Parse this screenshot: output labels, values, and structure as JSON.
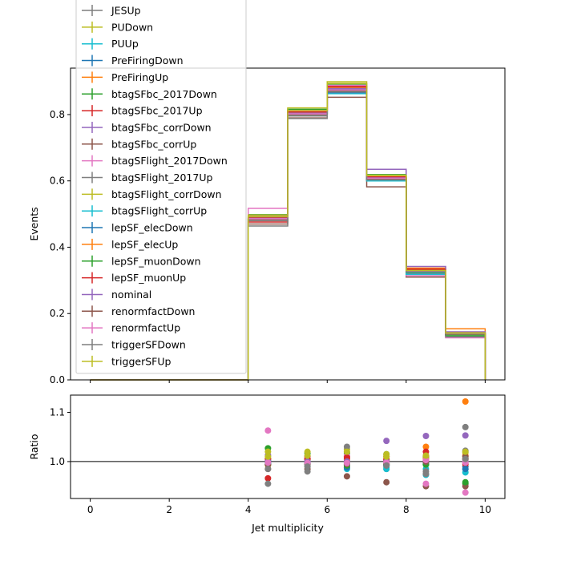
{
  "chart_data": [
    {
      "type": "line",
      "ylabel": "Events",
      "xlim": [
        -0.5,
        10.5
      ],
      "ylim": [
        0.0,
        0.94
      ],
      "y_ticks": [
        "0.0",
        "0.2",
        "0.4",
        "0.6",
        "0.8"
      ],
      "y_tick_values": [
        0.0,
        0.2,
        0.4,
        0.6,
        0.8
      ],
      "bin_edges": [
        0,
        1,
        2,
        3,
        4,
        5,
        6,
        7,
        8,
        9,
        10
      ],
      "legend_position": "upper-left",
      "series": [
        {
          "name": "JESUp",
          "color": "#7f7f7f",
          "values": [
            0,
            0,
            0,
            0,
            0.485,
            0.796,
            0.872,
            0.604,
            0.325,
            0.142
          ]
        },
        {
          "name": "PUDown",
          "color": "#bcbd22",
          "values": [
            0,
            0,
            0,
            0,
            0.49,
            0.807,
            0.878,
            0.606,
            0.33,
            0.14
          ]
        },
        {
          "name": "PUUp",
          "color": "#17becf",
          "values": [
            0,
            0,
            0,
            0,
            0.486,
            0.8,
            0.872,
            0.602,
            0.322,
            0.137
          ]
        },
        {
          "name": "PreFiringDown",
          "color": "#1f77b4",
          "values": [
            0,
            0,
            0,
            0,
            0.488,
            0.804,
            0.874,
            0.604,
            0.326,
            0.138
          ]
        },
        {
          "name": "PreFiringUp",
          "color": "#ff7f0e",
          "values": [
            0,
            0,
            0,
            0,
            0.484,
            0.8,
            0.867,
            0.612,
            0.337,
            0.154
          ]
        },
        {
          "name": "btagSFbc_2017Down",
          "color": "#2ca02c",
          "values": [
            0,
            0,
            0,
            0,
            0.498,
            0.816,
            0.892,
            0.619,
            0.328,
            0.132
          ]
        },
        {
          "name": "btagSFbc_2017Up",
          "color": "#d62728",
          "values": [
            0,
            0,
            0,
            0,
            0.476,
            0.812,
            0.885,
            0.611,
            0.334,
            0.138
          ]
        },
        {
          "name": "btagSFbc_corrDown",
          "color": "#9467bd",
          "values": [
            0,
            0,
            0,
            0,
            0.494,
            0.808,
            0.88,
            0.635,
            0.342,
            0.145
          ]
        },
        {
          "name": "btagSFbc_corrUp",
          "color": "#8c564b",
          "values": [
            0,
            0,
            0,
            0,
            0.47,
            0.79,
            0.852,
            0.582,
            0.31,
            0.128
          ]
        },
        {
          "name": "btagSFlight_2017Down",
          "color": "#e377c2",
          "values": [
            0,
            0,
            0,
            0,
            0.517,
            0.812,
            0.888,
            0.61,
            0.314,
            0.127
          ]
        },
        {
          "name": "btagSFlight_2017Up",
          "color": "#7f7f7f",
          "values": [
            0,
            0,
            0,
            0,
            0.464,
            0.788,
            0.875,
            0.6,
            0.32,
            0.13
          ]
        },
        {
          "name": "btagSFlight_corrDown",
          "color": "#bcbd22",
          "values": [
            0,
            0,
            0,
            0,
            0.497,
            0.82,
            0.899,
            0.617,
            0.328,
            0.142
          ]
        },
        {
          "name": "btagSFlight_corrUp",
          "color": "#17becf",
          "values": [
            0,
            0,
            0,
            0,
            0.484,
            0.8,
            0.863,
            0.6,
            0.318,
            0.136
          ]
        },
        {
          "name": "lepSF_elecDown",
          "color": "#1f77b4",
          "values": [
            0,
            0,
            0,
            0,
            0.486,
            0.801,
            0.866,
            0.604,
            0.325,
            0.137
          ]
        },
        {
          "name": "lepSF_elecUp",
          "color": "#ff7f0e",
          "values": [
            0,
            0,
            0,
            0,
            0.492,
            0.808,
            0.882,
            0.61,
            0.329,
            0.141
          ]
        },
        {
          "name": "lepSF_muonDown",
          "color": "#2ca02c",
          "values": [
            0,
            0,
            0,
            0,
            0.484,
            0.8,
            0.87,
            0.606,
            0.325,
            0.136
          ]
        },
        {
          "name": "lepSF_muonUp",
          "color": "#d62728",
          "values": [
            0,
            0,
            0,
            0,
            0.49,
            0.808,
            0.884,
            0.612,
            0.331,
            0.14
          ]
        },
        {
          "name": "nominal",
          "color": "#9467bd",
          "values": [
            0,
            0,
            0,
            0,
            0.487,
            0.804,
            0.877,
            0.609,
            0.327,
            0.139
          ]
        },
        {
          "name": "renormfactDown",
          "color": "#8c564b",
          "values": [
            0,
            0,
            0,
            0,
            0.484,
            0.8,
            0.872,
            0.606,
            0.327,
            0.138
          ]
        },
        {
          "name": "renormfactUp",
          "color": "#e377c2",
          "values": [
            0,
            0,
            0,
            0,
            0.486,
            0.802,
            0.874,
            0.608,
            0.328,
            0.139
          ]
        },
        {
          "name": "triggerSFDown",
          "color": "#7f7f7f",
          "values": [
            0,
            0,
            0,
            0,
            0.48,
            0.796,
            0.868,
            0.603,
            0.326,
            0.14
          ]
        },
        {
          "name": "triggerSFUp",
          "color": "#bcbd22",
          "values": [
            0,
            0,
            0,
            0,
            0.492,
            0.812,
            0.894,
            0.616,
            0.33,
            0.141
          ]
        }
      ]
    },
    {
      "type": "scatter",
      "xlabel": "Jet multiplicity",
      "ylabel": "Ratio",
      "xlim": [
        -0.5,
        10.5
      ],
      "ylim": [
        0.925,
        1.135
      ],
      "x_ticks": [
        "0",
        "2",
        "4",
        "6",
        "8",
        "10"
      ],
      "x_tick_values": [
        0,
        2,
        4,
        6,
        8,
        10
      ],
      "y_ticks": [
        "1.0",
        "1.1"
      ],
      "y_tick_values": [
        1.0,
        1.1
      ],
      "reference_line": 1.0,
      "x": [
        4.5,
        5.5,
        6.5,
        7.5,
        8.5,
        9.5
      ],
      "series": [
        {
          "name": "JESUp",
          "color": "#7f7f7f",
          "values": [
            0.995,
            0.99,
            0.995,
            0.992,
            0.994,
            1.022
          ]
        },
        {
          "name": "PUDown",
          "color": "#bcbd22",
          "values": [
            1.005,
            1.005,
            1.0,
            0.995,
            1.008,
            1.005
          ]
        },
        {
          "name": "PUUp",
          "color": "#17becf",
          "values": [
            0.997,
            0.995,
            0.994,
            0.988,
            0.985,
            0.985
          ]
        },
        {
          "name": "PreFiringDown",
          "color": "#1f77b4",
          "values": [
            1.002,
            1.0,
            0.997,
            0.992,
            0.997,
            0.99
          ]
        },
        {
          "name": "PreFiringUp",
          "color": "#ff7f0e",
          "values": [
            0.993,
            0.995,
            0.988,
            1.005,
            1.03,
            1.122
          ]
        },
        {
          "name": "btagSFbc_2017Down",
          "color": "#2ca02c",
          "values": [
            1.027,
            1.017,
            1.017,
            1.015,
            1.01,
            0.955
          ]
        },
        {
          "name": "btagSFbc_2017Up",
          "color": "#d62728",
          "values": [
            0.966,
            1.01,
            1.01,
            1.01,
            1.02,
            0.995
          ]
        },
        {
          "name": "btagSFbc_corrDown",
          "color": "#9467bd",
          "values": [
            1.013,
            1.005,
            1.004,
            1.042,
            1.052,
            1.053
          ]
        },
        {
          "name": "btagSFbc_corrUp",
          "color": "#8c564b",
          "values": [
            0.985,
            0.985,
            0.97,
            0.958,
            0.95,
            0.95
          ]
        },
        {
          "name": "btagSFlight_2017Down",
          "color": "#e377c2",
          "values": [
            1.063,
            1.01,
            1.012,
            1.002,
            0.955,
            0.937
          ]
        },
        {
          "name": "btagSFlight_2017Up",
          "color": "#7f7f7f",
          "values": [
            0.955,
            0.98,
            1.0,
            0.985,
            0.98,
            1.07
          ]
        },
        {
          "name": "btagSFlight_corrDown",
          "color": "#bcbd22",
          "values": [
            1.02,
            1.02,
            1.025,
            1.015,
            1.005,
            1.018
          ]
        },
        {
          "name": "btagSFlight_corrUp",
          "color": "#17becf",
          "values": [
            0.995,
            0.995,
            0.985,
            0.985,
            0.973,
            0.978
          ]
        },
        {
          "name": "lepSF_elecDown",
          "color": "#1f77b4",
          "values": [
            0.998,
            0.997,
            0.988,
            0.992,
            0.994,
            0.985
          ]
        },
        {
          "name": "lepSF_elecUp",
          "color": "#ff7f0e",
          "values": [
            1.005,
            1.005,
            1.006,
            1.002,
            1.006,
            1.012
          ]
        },
        {
          "name": "lepSF_muonDown",
          "color": "#2ca02c",
          "values": [
            0.994,
            0.995,
            0.992,
            0.995,
            0.994,
            0.958
          ]
        },
        {
          "name": "lepSF_muonUp",
          "color": "#d62728",
          "values": [
            1.006,
            1.005,
            1.008,
            1.004,
            1.012,
            1.005
          ]
        },
        {
          "name": "nominal",
          "color": "#9467bd",
          "values": [
            1.0,
            1.0,
            1.0,
            1.0,
            1.0,
            1.0
          ]
        },
        {
          "name": "renormfactDown",
          "color": "#8c564b",
          "values": [
            0.994,
            0.995,
            0.995,
            0.995,
            1.0,
            1.01
          ]
        },
        {
          "name": "renormfactUp",
          "color": "#e377c2",
          "values": [
            0.998,
            0.997,
            0.997,
            0.998,
            1.003,
            0.998
          ]
        },
        {
          "name": "triggerSFDown",
          "color": "#7f7f7f",
          "values": [
            0.985,
            0.99,
            1.03,
            0.992,
            0.975,
            1.005
          ]
        },
        {
          "name": "triggerSFUp",
          "color": "#bcbd22",
          "values": [
            1.01,
            1.012,
            1.02,
            1.01,
            1.012,
            1.02
          ]
        }
      ]
    }
  ]
}
